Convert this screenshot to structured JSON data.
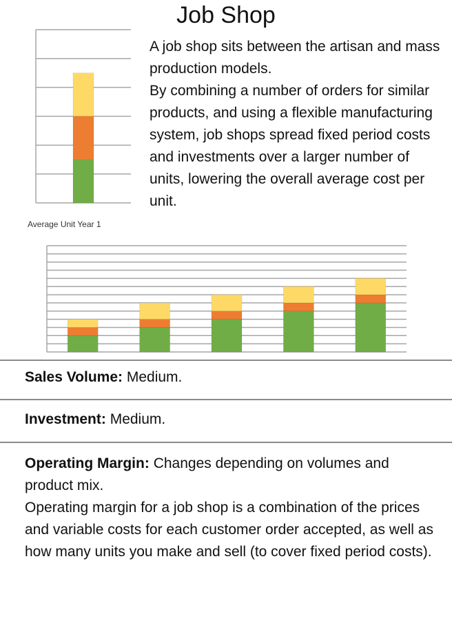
{
  "title": "Job Shop",
  "intro": {
    "p1": "A job shop sits between the artisan and mass production models.",
    "p2": "By combining a number of orders for similar products, and using a flexible manufacturing system, job shops spread fixed period costs and investments over a larger number of units, lowering the overall average cost per unit."
  },
  "colors": {
    "green": "#70ad47",
    "orange": "#ed7d31",
    "yellow": "#ffd966",
    "grid": "#a6a6a6"
  },
  "chart_data": [
    {
      "type": "bar",
      "stacked": true,
      "categories": [
        "Average Unit Year 1"
      ],
      "series": [
        {
          "values": [
            3
          ]
        },
        {
          "values": [
            3
          ]
        },
        {
          "values": [
            3
          ]
        }
      ],
      "ylim": [
        0,
        12
      ],
      "grid": true
    },
    {
      "type": "bar",
      "stacked": true,
      "categories": [
        "",
        "",
        "",
        "",
        ""
      ],
      "series": [
        {
          "values": [
            2,
            3,
            4,
            5,
            6
          ]
        },
        {
          "values": [
            1,
            1,
            1,
            1,
            1
          ]
        },
        {
          "values": [
            1,
            2,
            2,
            2,
            2
          ]
        }
      ],
      "ylim": [
        0,
        13
      ],
      "grid": true
    }
  ],
  "sales_volume": {
    "label": "Sales Volume:",
    "value": "Medium."
  },
  "investment": {
    "label": "Investment:",
    "value": "Medium."
  },
  "operating_margin": {
    "label": "Operating Margin:",
    "value": "Changes depending on volumes and product mix.",
    "detail": "Operating margin for a job shop is a combination of the prices and variable costs for each customer order accepted, as well as how many units you make and sell (to cover fixed period costs)."
  }
}
